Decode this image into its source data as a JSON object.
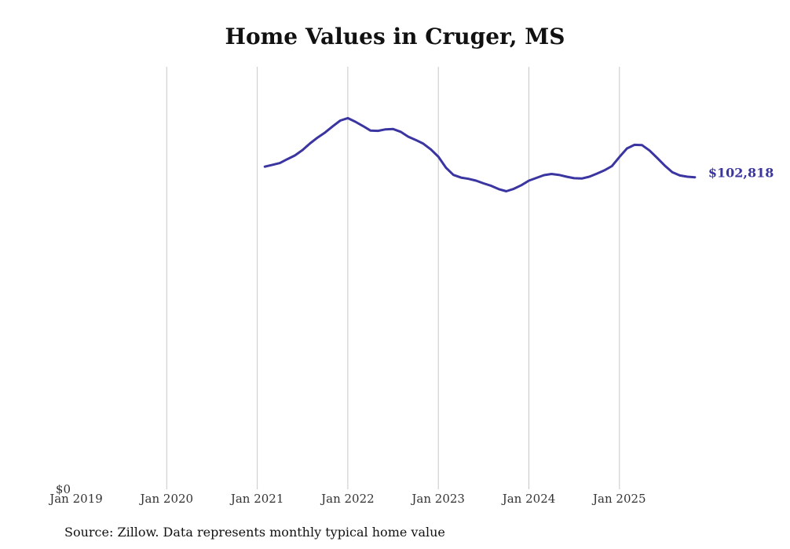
{
  "chart_data": {
    "type": "line",
    "title": "Home Values in Cruger, MS",
    "xlabel": "",
    "ylabel": "",
    "x_ticks": [
      "Jan 2019",
      "Jan 2020",
      "Jan 2021",
      "Jan 2022",
      "Jan 2023",
      "Jan 2024",
      "Jan 2025"
    ],
    "y_ticks": [
      "$0"
    ],
    "ylim": [
      0,
      140000
    ],
    "grid": "vertical",
    "color": "#3a35a0",
    "end_label": "$102,818",
    "series": [
      {
        "x": [
          "2021-02",
          "2021-03",
          "2021-04",
          "2021-05",
          "2021-06",
          "2021-07",
          "2021-08",
          "2021-09",
          "2021-10",
          "2021-11",
          "2021-12",
          "2022-01",
          "2022-02",
          "2022-03",
          "2022-04",
          "2022-05",
          "2022-06",
          "2022-07",
          "2022-08",
          "2022-09",
          "2022-10",
          "2022-11",
          "2022-12",
          "2023-01",
          "2023-02",
          "2023-03",
          "2023-04",
          "2023-05",
          "2023-06",
          "2023-07",
          "2023-08",
          "2023-09",
          "2023-10",
          "2023-11",
          "2023-12",
          "2024-01",
          "2024-02",
          "2024-03",
          "2024-04",
          "2024-05",
          "2024-06",
          "2024-07",
          "2024-08",
          "2024-09",
          "2024-10",
          "2024-11",
          "2024-12",
          "2025-01",
          "2025-02",
          "2025-03",
          "2025-04",
          "2025-05",
          "2025-06",
          "2025-07",
          "2025-08",
          "2025-09",
          "2025-10",
          "2025-11"
        ],
        "values": [
          106300,
          106900,
          107500,
          108800,
          110000,
          111800,
          114000,
          115900,
          117600,
          119600,
          121500,
          122300,
          121100,
          119700,
          118200,
          118100,
          118600,
          118700,
          117800,
          116200,
          115100,
          113900,
          112000,
          109600,
          106000,
          103600,
          102700,
          102300,
          101700,
          100800,
          100000,
          98900,
          98200,
          99000,
          100200,
          101700,
          102600,
          103500,
          103900,
          103600,
          103000,
          102500,
          102400,
          103000,
          104000,
          105100,
          106500,
          109500,
          112300,
          113500,
          113400,
          111600,
          109200,
          106700,
          104500,
          103400,
          103000,
          102818
        ]
      }
    ]
  },
  "source_text": "Source: Zillow. Data represents monthly typical home value"
}
